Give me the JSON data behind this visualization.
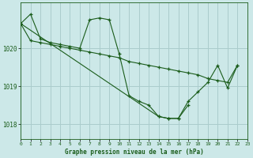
{
  "background_color": "#cce8e8",
  "grid_color": "#aacccc",
  "line_color": "#1a5c1a",
  "marker": "+",
  "title": "Graphe pression niveau de la mer (hPa)",
  "xlim": [
    0,
    23
  ],
  "ylim": [
    1017.6,
    1021.2
  ],
  "yticks": [
    1018,
    1019,
    1020
  ],
  "xticks": [
    0,
    1,
    2,
    3,
    4,
    5,
    6,
    7,
    8,
    9,
    10,
    11,
    12,
    13,
    14,
    15,
    16,
    17,
    18,
    19,
    20,
    21,
    22,
    23
  ],
  "series": [
    {
      "x": [
        0,
        1,
        2,
        3,
        4,
        5,
        6,
        7,
        8,
        9,
        10,
        11,
        12,
        13,
        14,
        15,
        16,
        17
      ],
      "y": [
        1020.65,
        1020.9,
        1020.25,
        1020.15,
        1020.1,
        1020.05,
        1020.0,
        1020.75,
        1020.8,
        1020.75,
        1019.85,
        1018.75,
        1018.6,
        1018.5,
        1018.2,
        1018.15,
        1018.15,
        1018.5
      ]
    },
    {
      "x": [
        0,
        1,
        2,
        3,
        4,
        5,
        6,
        7,
        8,
        9,
        10,
        11,
        12,
        13,
        14,
        15,
        16,
        17,
        18,
        19,
        20,
        21,
        22
      ],
      "y": [
        1020.65,
        1020.2,
        1020.15,
        1020.1,
        1020.05,
        1020.0,
        1019.95,
        1019.9,
        1019.85,
        1019.8,
        1019.75,
        1019.65,
        1019.6,
        1019.55,
        1019.5,
        1019.45,
        1019.4,
        1019.35,
        1019.3,
        1019.2,
        1019.15,
        1019.1,
        1019.55
      ]
    },
    {
      "x": [
        0,
        14,
        15,
        16,
        17,
        18,
        19,
        20,
        21,
        22
      ],
      "y": [
        1020.65,
        1018.2,
        1018.15,
        1018.15,
        1018.6,
        1018.85,
        1019.1,
        1019.55,
        1018.95,
        1019.55
      ]
    }
  ]
}
